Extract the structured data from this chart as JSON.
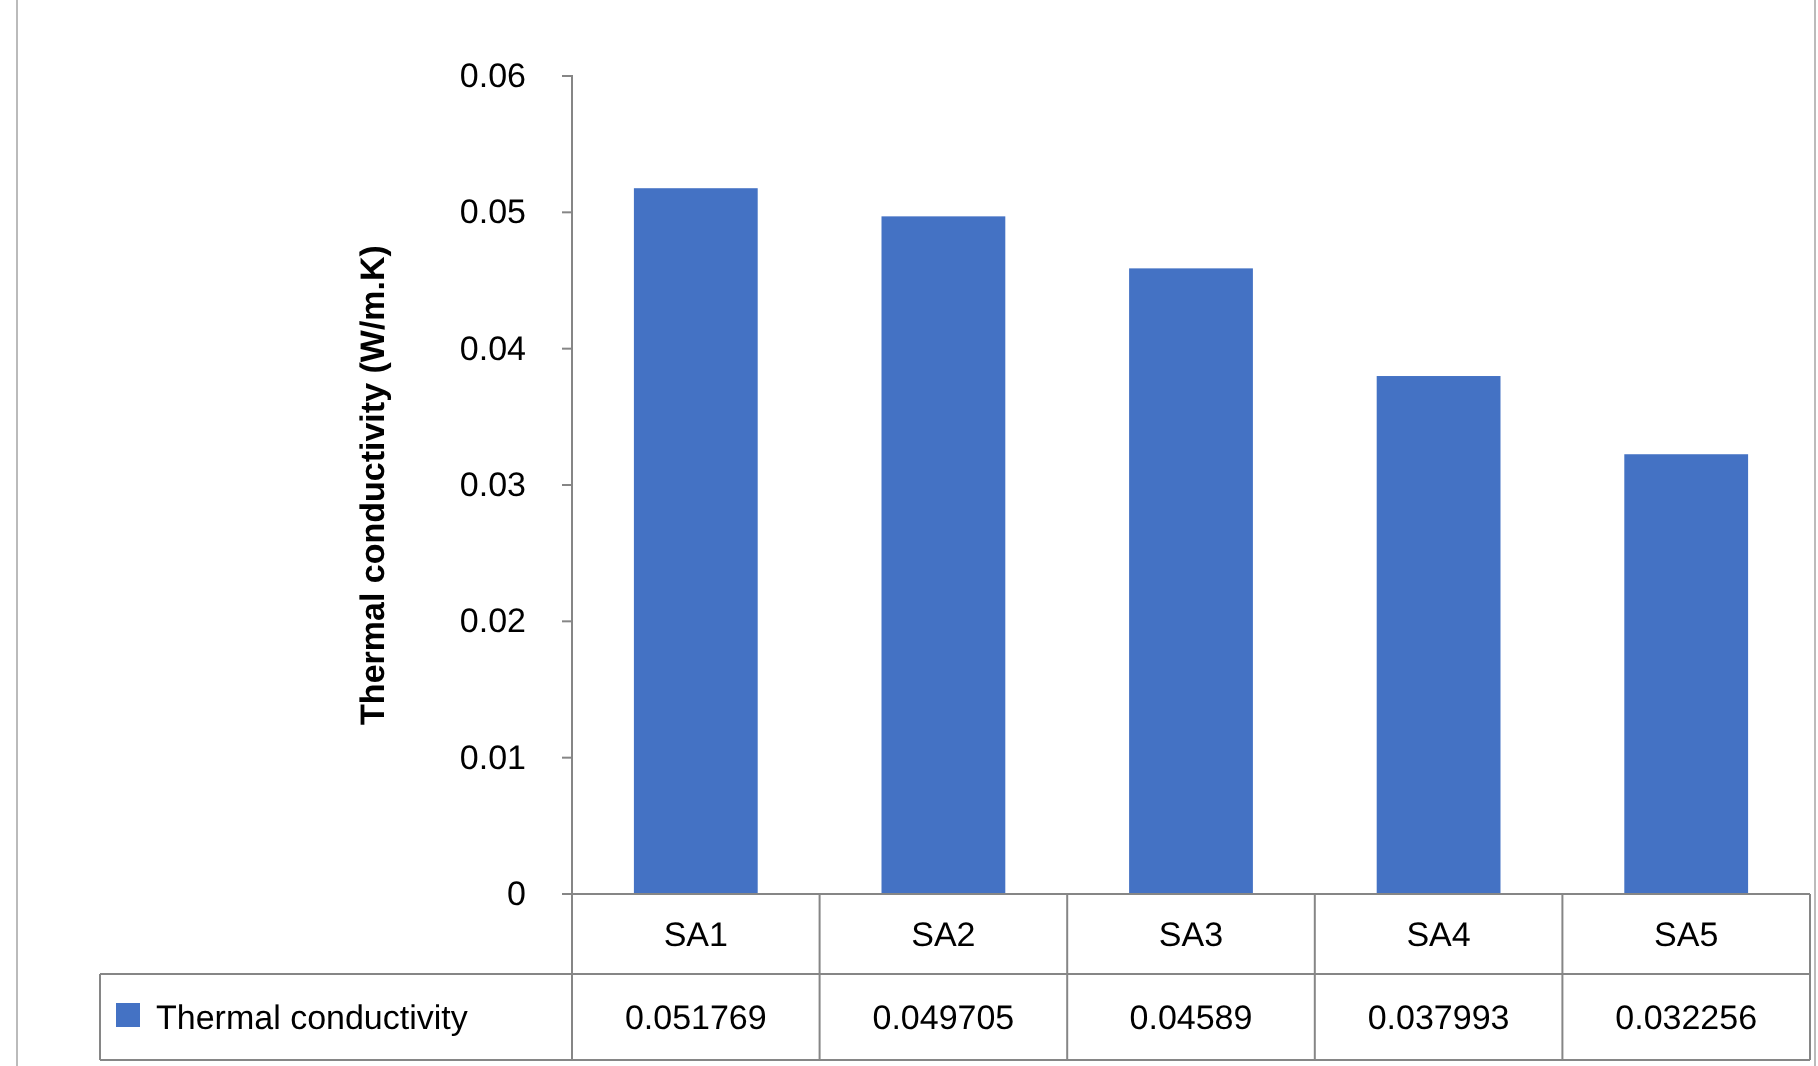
{
  "chart_data": {
    "type": "bar",
    "ylabel": "Thermal conductivity (W/m.K)",
    "categories": [
      "SA1",
      "SA2",
      "SA3",
      "SA4",
      "SA5"
    ],
    "series": [
      {
        "name": "Thermal conductivity",
        "color": "#4472c4",
        "values": [
          0.051769,
          0.049705,
          0.04589,
          0.037993,
          0.032256
        ]
      }
    ],
    "ylim": [
      0,
      0.06
    ],
    "yticks": [
      {
        "value": 0,
        "label": "0"
      },
      {
        "value": 0.01,
        "label": "0.01"
      },
      {
        "value": 0.02,
        "label": "0.02"
      },
      {
        "value": 0.03,
        "label": "0.03"
      },
      {
        "value": 0.04,
        "label": "0.04"
      },
      {
        "value": 0.05,
        "label": "0.05"
      },
      {
        "value": 0.06,
        "label": "0.06"
      }
    ],
    "data_labels": true,
    "legend": "bottom",
    "grid": false
  }
}
